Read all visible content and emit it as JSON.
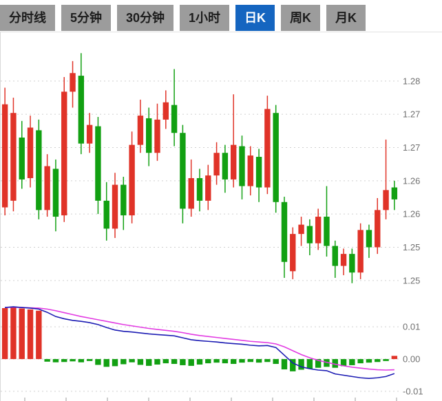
{
  "app": {
    "description": "stock kline chart viewer"
  },
  "toolbar": {
    "tabs": [
      {
        "id": "time-line",
        "label": "分时线",
        "active": false
      },
      {
        "id": "5min",
        "label": "5分钟",
        "active": false
      },
      {
        "id": "30min",
        "label": "30分钟",
        "active": false
      },
      {
        "id": "1hour",
        "label": "1小时",
        "active": false
      },
      {
        "id": "daily-k",
        "label": "日K",
        "active": true
      },
      {
        "id": "weekly-k",
        "label": "周K",
        "active": false
      },
      {
        "id": "monthly-k",
        "label": "月K",
        "active": false
      }
    ],
    "active_bg": "#1565c0",
    "active_fg": "#ffffff",
    "inactive_bg": "#9c9c9c",
    "inactive_fg": "#1c1c1c"
  },
  "colors": {
    "bullish": "#e03328",
    "bearish": "#12a012",
    "dif_line": "#1b1bb3",
    "dea_line": "#e23ae2",
    "gridline": "#cfcfcf",
    "axis_label": "#707070",
    "tick": "#9a9a9a"
  },
  "chart_data": [
    {
      "type": "candlestick",
      "title": "日K (daily candlestick)",
      "grid": "dotted-horizontal",
      "legend_position": "none",
      "ylim": [
        1.2475,
        1.2865
      ],
      "yticks": [
        {
          "value": 1.28,
          "label": "1.28"
        },
        {
          "value": 1.275,
          "label": "1.27"
        },
        {
          "value": 1.27,
          "label": "1.27"
        },
        {
          "value": 1.265,
          "label": "1.26"
        },
        {
          "value": 1.26,
          "label": "1.26"
        },
        {
          "value": 1.255,
          "label": "1.25"
        },
        {
          "value": 1.25,
          "label": "1.25"
        }
      ],
      "ohlc_format": [
        "open",
        "high",
        "low",
        "close"
      ],
      "up_color_rule": "close >= open is red (CN convention)",
      "candles": [
        [
          1.261,
          1.279,
          1.2598,
          1.2765
        ],
        [
          1.262,
          1.2775,
          1.2604,
          1.2752
        ],
        [
          1.2715,
          1.274,
          1.2638,
          1.2652
        ],
        [
          1.2654,
          1.2748,
          1.264,
          1.273
        ],
        [
          1.2726,
          1.2742,
          1.2592,
          1.2606
        ],
        [
          1.2606,
          1.269,
          1.2596,
          1.2672
        ],
        [
          1.2668,
          1.2682,
          1.2574,
          1.2596
        ],
        [
          1.2598,
          1.2806,
          1.2588,
          1.2784
        ],
        [
          1.2784,
          1.283,
          1.276,
          1.2812
        ],
        [
          1.2808,
          1.2842,
          1.269,
          1.2706
        ],
        [
          1.2706,
          1.2752,
          1.2692,
          1.2734
        ],
        [
          1.2732,
          1.2746,
          1.26,
          1.262
        ],
        [
          1.262,
          1.2648,
          1.256,
          1.2578
        ],
        [
          1.2578,
          1.2662,
          1.2564,
          1.2644
        ],
        [
          1.2644,
          1.2656,
          1.2576,
          1.2598
        ],
        [
          1.2598,
          1.2724,
          1.2586,
          1.2704
        ],
        [
          1.2704,
          1.2772,
          1.2692,
          1.2748
        ],
        [
          1.2744,
          1.276,
          1.2672,
          1.2692
        ],
        [
          1.2692,
          1.2766,
          1.268,
          1.2742
        ],
        [
          1.2742,
          1.2786,
          1.2728,
          1.2768
        ],
        [
          1.2764,
          1.2818,
          1.2702,
          1.2722
        ],
        [
          1.2722,
          1.2734,
          1.2586,
          1.2608
        ],
        [
          1.2608,
          1.2682,
          1.2596,
          1.2654
        ],
        [
          1.2654,
          1.2668,
          1.2604,
          1.262
        ],
        [
          1.262,
          1.2674,
          1.2606,
          1.2658
        ],
        [
          1.2658,
          1.2708,
          1.2644,
          1.2692
        ],
        [
          1.2692,
          1.2704,
          1.2632,
          1.2652
        ],
        [
          1.2652,
          1.278,
          1.264,
          1.2704
        ],
        [
          1.2702,
          1.2718,
          1.2622,
          1.2642
        ],
        [
          1.2642,
          1.2702,
          1.2628,
          1.2688
        ],
        [
          1.2686,
          1.2698,
          1.2618,
          1.264
        ],
        [
          1.264,
          1.2778,
          1.263,
          1.2758
        ],
        [
          1.2752,
          1.2764,
          1.2602,
          1.2618
        ],
        [
          1.2618,
          1.2626,
          1.2504,
          1.2528
        ],
        [
          1.2514,
          1.258,
          1.2502,
          1.257
        ],
        [
          1.257,
          1.2596,
          1.2552,
          1.2584
        ],
        [
          1.2582,
          1.2592,
          1.2538,
          1.2556
        ],
        [
          1.2556,
          1.2608,
          1.2546,
          1.2596
        ],
        [
          1.2596,
          1.2642,
          1.2536,
          1.2552
        ],
        [
          1.2552,
          1.256,
          1.2504,
          1.2522
        ],
        [
          1.2522,
          1.2548,
          1.2508,
          1.254
        ],
        [
          1.254,
          1.2548,
          1.2496,
          1.2512
        ],
        [
          1.2512,
          1.2586,
          1.2502,
          1.2576
        ],
        [
          1.2576,
          1.2584,
          1.2534,
          1.255
        ],
        [
          1.255,
          1.2624,
          1.254,
          1.2606
        ],
        [
          1.2606,
          1.2712,
          1.2592,
          1.2636
        ],
        [
          1.264,
          1.265,
          1.2606,
          1.2622
        ]
      ]
    },
    {
      "type": "macd",
      "title": "MACD indicator panel",
      "grid": "dotted-horizontal",
      "ylim": [
        -0.013,
        0.0175
      ],
      "yticks": [
        {
          "value": 0.01,
          "label": "0.01"
        },
        {
          "value": 0.0,
          "label": "0.00"
        },
        {
          "value": -0.01,
          "label": "-0.01"
        }
      ],
      "histogram": [
        0.0158,
        0.0161,
        0.0157,
        0.0154,
        0.015,
        -0.0008,
        -0.001,
        -0.0009,
        -0.0007,
        -0.001,
        -0.0006,
        -0.0018,
        -0.0024,
        -0.0022,
        -0.0016,
        -0.001,
        -0.0018,
        -0.0021,
        -0.0017,
        -0.0013,
        -0.0015,
        -0.0019,
        -0.0021,
        -0.0017,
        -0.0013,
        -0.0011,
        -0.0013,
        -0.0015,
        -0.0011,
        -0.0009,
        -0.0011,
        -0.0009,
        -0.0015,
        -0.0032,
        -0.0038,
        -0.0033,
        -0.003,
        -0.0027,
        -0.0024,
        -0.0027,
        -0.0022,
        -0.0019,
        -0.0013,
        -0.0011,
        -0.0009,
        -0.0006,
        0.001
      ],
      "dif": [
        0.016,
        0.0162,
        0.016,
        0.0158,
        0.0155,
        0.0145,
        0.0132,
        0.0125,
        0.012,
        0.0117,
        0.0113,
        0.0107,
        0.0098,
        0.009,
        0.0086,
        0.0084,
        0.0081,
        0.0078,
        0.0076,
        0.0074,
        0.0072,
        0.0066,
        0.006,
        0.0057,
        0.0055,
        0.0053,
        0.005,
        0.0048,
        0.0046,
        0.0043,
        0.0041,
        0.0042,
        0.0036,
        0.0012,
        -0.0012,
        -0.0024,
        -0.003,
        -0.0034,
        -0.0036,
        -0.0046,
        -0.005,
        -0.0054,
        -0.0058,
        -0.006,
        -0.0058,
        -0.0054,
        -0.0045
      ],
      "dea": [
        0.016,
        0.0161,
        0.016,
        0.0159,
        0.0158,
        0.0155,
        0.015,
        0.0144,
        0.0138,
        0.0132,
        0.0127,
        0.0122,
        0.0117,
        0.0112,
        0.0107,
        0.0103,
        0.0099,
        0.0095,
        0.0092,
        0.0089,
        0.0086,
        0.0082,
        0.0077,
        0.0073,
        0.007,
        0.0067,
        0.0064,
        0.0061,
        0.0058,
        0.0055,
        0.0053,
        0.0051,
        0.0047,
        0.0038,
        0.0026,
        0.0014,
        0.0004,
        -0.0004,
        -0.001,
        -0.0016,
        -0.0021,
        -0.0025,
        -0.0028,
        -0.0031,
        -0.0033,
        -0.0034,
        -0.0033
      ]
    }
  ]
}
